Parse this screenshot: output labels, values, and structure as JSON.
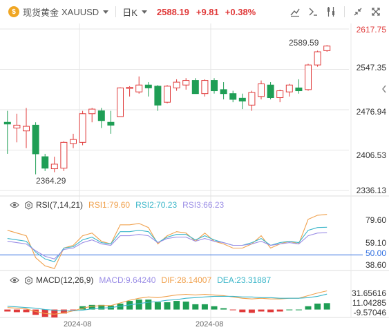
{
  "header": {
    "symbol_icon": "gold-coin-icon",
    "symbol_name": "现货黄金",
    "symbol_code": "XAUUSD",
    "period": "日K",
    "price": "2588.19",
    "change": "+9.81",
    "change_pct": "+0.38%",
    "tools": [
      "draw-line-icon",
      "indicator-icon",
      "settings-sliders-icon",
      "collapse-icon",
      "fullscreen-icon"
    ]
  },
  "colors": {
    "up": "#e03a3a",
    "down": "#1f9e55",
    "rsi1": "#f0a04b",
    "rsi2": "#3bb6c9",
    "rsi3": "#9b8ee6",
    "grid": "#e6e6e6"
  },
  "price_axis": [
    "2617.75",
    "2547.35",
    "2476.94",
    "2406.53",
    "2336.13"
  ],
  "annotations": {
    "high": "2589.59",
    "low": "2364.29"
  },
  "rsi": {
    "label": "RSI(7,14,21)",
    "rsi1": "RSI1:79.60",
    "rsi2": "RSI2:70.23",
    "rsi3": "RSI3:66.23",
    "axis": [
      "79.60",
      "59.10",
      "50.00",
      "38.60"
    ]
  },
  "macd": {
    "label": "MACD(12,26,9)",
    "macd": "MACD:9.64240",
    "dif": "DIF:28.14007",
    "dea": "DEA:23.31887",
    "axis": [
      "31.65616",
      "11.04285",
      "-9.57046"
    ]
  },
  "x_axis": [
    "2024-08",
    "2024-08"
  ],
  "chart_data": {
    "type": "candlestick",
    "price_range": [
      2336.13,
      2617.75
    ],
    "candles": [
      {
        "o": 2455,
        "c": 2452,
        "h": 2475,
        "l": 2400
      },
      {
        "o": 2445,
        "c": 2450,
        "h": 2470,
        "l": 2420
      },
      {
        "o": 2440,
        "c": 2448,
        "h": 2480,
        "l": 2410
      },
      {
        "o": 2450,
        "c": 2400,
        "h": 2455,
        "l": 2364.29
      },
      {
        "o": 2395,
        "c": 2375,
        "h": 2400,
        "l": 2370
      },
      {
        "o": 2374,
        "c": 2382,
        "h": 2395,
        "l": 2368
      },
      {
        "o": 2375,
        "c": 2420,
        "h": 2422,
        "l": 2370
      },
      {
        "o": 2418,
        "c": 2425,
        "h": 2435,
        "l": 2410
      },
      {
        "o": 2420,
        "c": 2470,
        "h": 2475,
        "l": 2415
      },
      {
        "o": 2470,
        "c": 2478,
        "h": 2480,
        "l": 2455
      },
      {
        "o": 2475,
        "c": 2458,
        "h": 2480,
        "l": 2445
      },
      {
        "o": 2455,
        "c": 2450,
        "h": 2475,
        "l": 2435
      },
      {
        "o": 2465,
        "c": 2515,
        "h": 2516,
        "l": 2465
      },
      {
        "o": 2514,
        "c": 2516,
        "h": 2518,
        "l": 2500
      },
      {
        "o": 2508,
        "c": 2520,
        "h": 2535,
        "l": 2505
      },
      {
        "o": 2520,
        "c": 2515,
        "h": 2525,
        "l": 2500
      },
      {
        "o": 2518,
        "c": 2485,
        "h": 2520,
        "l": 2475
      },
      {
        "o": 2490,
        "c": 2518,
        "h": 2520,
        "l": 2488
      },
      {
        "o": 2515,
        "c": 2525,
        "h": 2530,
        "l": 2510
      },
      {
        "o": 2520,
        "c": 2528,
        "h": 2532,
        "l": 2512
      },
      {
        "o": 2528,
        "c": 2505,
        "h": 2532,
        "l": 2505
      },
      {
        "o": 2505,
        "c": 2528,
        "h": 2530,
        "l": 2500
      },
      {
        "o": 2528,
        "c": 2510,
        "h": 2532,
        "l": 2505
      },
      {
        "o": 2512,
        "c": 2505,
        "h": 2525,
        "l": 2495
      },
      {
        "o": 2505,
        "c": 2495,
        "h": 2510,
        "l": 2490
      },
      {
        "o": 2497,
        "c": 2492,
        "h": 2505,
        "l": 2478
      },
      {
        "o": 2485,
        "c": 2507,
        "h": 2510,
        "l": 2475
      },
      {
        "o": 2500,
        "c": 2522,
        "h": 2528,
        "l": 2495
      },
      {
        "o": 2520,
        "c": 2498,
        "h": 2525,
        "l": 2495
      },
      {
        "o": 2498,
        "c": 2510,
        "h": 2512,
        "l": 2490
      },
      {
        "o": 2508,
        "c": 2520,
        "h": 2522,
        "l": 2500
      },
      {
        "o": 2515,
        "c": 2510,
        "h": 2530,
        "l": 2505
      },
      {
        "o": 2512,
        "c": 2555,
        "h": 2557,
        "l": 2510
      },
      {
        "o": 2555,
        "c": 2578,
        "h": 2580,
        "l": 2552
      },
      {
        "o": 2580,
        "c": 2588,
        "h": 2589.59,
        "l": 2578
      }
    ],
    "rsi_range": [
      38.6,
      85
    ],
    "rsi1": [
      68,
      66,
      64,
      48,
      42,
      40,
      55,
      57,
      64,
      66,
      60,
      58,
      72,
      72,
      73,
      70,
      58,
      64,
      67,
      66,
      60,
      66,
      60,
      58,
      55,
      55,
      58,
      64,
      55,
      58,
      60,
      58,
      76,
      79,
      79.6
    ],
    "rsi2": [
      62,
      61,
      60,
      52,
      47,
      45,
      55,
      56,
      61,
      63,
      59,
      58,
      67,
      67,
      68,
      67,
      59,
      63,
      65,
      65,
      61,
      64,
      61,
      59,
      57,
      57,
      59,
      62,
      57,
      59,
      60,
      59,
      68,
      70,
      70.23
    ],
    "rsi3": [
      60,
      59,
      58,
      53,
      49,
      47,
      54,
      55,
      59,
      61,
      58,
      57,
      64,
      64,
      65,
      64,
      59,
      62,
      63,
      63,
      60,
      62,
      60,
      59,
      57,
      57,
      58,
      60,
      57,
      58,
      59,
      58,
      64,
      66,
      66.23
    ],
    "macd_range": [
      -14,
      36
    ],
    "dif": [
      3,
      2,
      1,
      -3,
      -6,
      -7,
      -5,
      -2,
      2,
      5,
      6,
      6,
      10,
      14,
      17,
      19,
      18,
      20,
      22,
      23,
      22,
      23,
      22,
      21,
      19,
      17,
      16,
      17,
      16,
      16,
      17,
      17,
      21,
      25,
      28.14
    ],
    "dea": [
      5,
      4,
      3,
      2,
      0,
      -1,
      -2,
      -2,
      -1,
      1,
      2,
      3,
      5,
      7,
      9,
      11,
      12,
      14,
      15,
      17,
      18,
      19,
      20,
      20,
      20,
      19,
      19,
      18,
      18,
      17,
      17,
      17,
      18,
      20,
      23.32
    ],
    "macd_hist": [
      -3,
      -4,
      -4,
      -8,
      -11,
      -12,
      -6,
      -1,
      5,
      7,
      7,
      6,
      9,
      13,
      15,
      15,
      11,
      11,
      13,
      12,
      8,
      8,
      5,
      2,
      -1,
      -4,
      -5,
      -3,
      -4,
      -3,
      0,
      0,
      5,
      9,
      9.64
    ]
  }
}
